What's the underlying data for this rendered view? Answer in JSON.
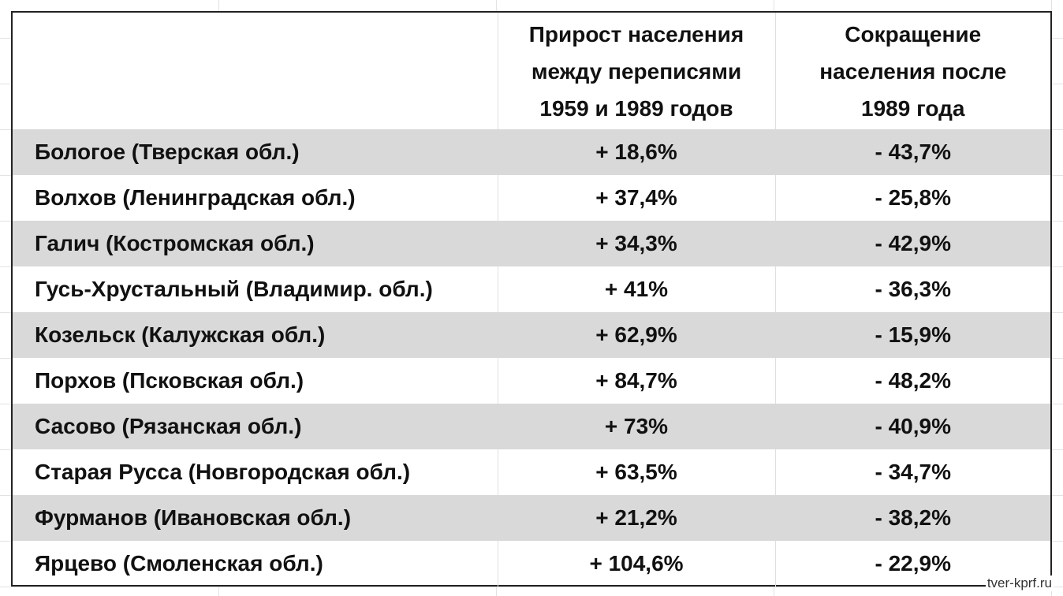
{
  "header": {
    "columns": [
      [
        "Прирост населения",
        "между переписями",
        "1959 и 1989 годов"
      ],
      [
        "Сокращение",
        "населения после",
        "1989 года"
      ]
    ]
  },
  "table": {
    "rows": [
      [
        "Бологое (Тверская обл.)",
        "+ 18,6%",
        "- 43,7%"
      ],
      [
        "Волхов (Ленинградская обл.)",
        "+ 37,4%",
        "- 25,8%"
      ],
      [
        "Галич (Костромская обл.)",
        "+ 34,3%",
        "- 42,9%"
      ],
      [
        "Гусь-Хрустальный (Владимир. обл.)",
        "+ 41%",
        "- 36,3%"
      ],
      [
        "Козельск (Калужская обл.)",
        "+ 62,9%",
        "- 15,9%"
      ],
      [
        "Порхов (Псковская обл.)",
        "+ 84,7%",
        "- 48,2%"
      ],
      [
        "Сасово (Рязанская обл.)",
        "+ 73%",
        "- 40,9%"
      ],
      [
        "Старая Русса (Новгородская обл.)",
        "+ 63,5%",
        "- 34,7%"
      ],
      [
        "Фурманов (Ивановская обл.)",
        "+ 21,2%",
        "- 38,2%"
      ],
      [
        "Ярцево (Смоленская обл.)",
        "+ 104,6%",
        "- 22,9%"
      ]
    ]
  },
  "watermark": "tver-kprf.ru"
}
